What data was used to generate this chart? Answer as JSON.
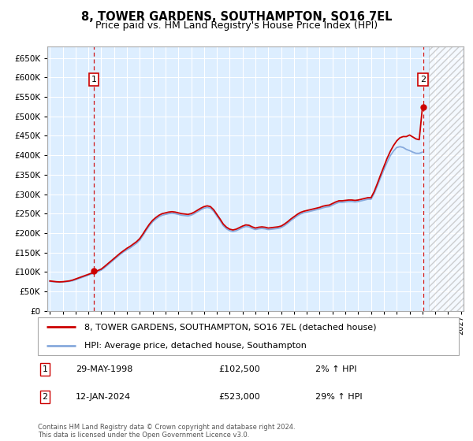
{
  "title": "8, TOWER GARDENS, SOUTHAMPTON, SO16 7EL",
  "subtitle": "Price paid vs. HM Land Registry's House Price Index (HPI)",
  "title_fontsize": 10.5,
  "subtitle_fontsize": 9,
  "ytick_values": [
    0,
    50000,
    100000,
    150000,
    200000,
    250000,
    300000,
    350000,
    400000,
    450000,
    500000,
    550000,
    600000,
    650000
  ],
  "ylim": [
    0,
    680000
  ],
  "xlim_start": 1994.8,
  "xlim_end": 2027.2,
  "chart_bg": "#ddeeff",
  "grid_color": "#ffffff",
  "hpi_color": "#88aadd",
  "price_color": "#cc0000",
  "point1_x": 1998.41,
  "point1_y": 102500,
  "point2_x": 2024.04,
  "point2_y": 523000,
  "hatch_start": 2024.5,
  "legend_label1": "8, TOWER GARDENS, SOUTHAMPTON, SO16 7EL (detached house)",
  "legend_label2": "HPI: Average price, detached house, Southampton",
  "annotation1_num": "1",
  "annotation1_date": "29-MAY-1998",
  "annotation1_price": "£102,500",
  "annotation1_hpi": "2% ↑ HPI",
  "annotation2_num": "2",
  "annotation2_date": "12-JAN-2024",
  "annotation2_price": "£523,000",
  "annotation2_hpi": "29% ↑ HPI",
  "footer": "Contains HM Land Registry data © Crown copyright and database right 2024.\nThis data is licensed under the Open Government Licence v3.0.",
  "hpi_data_x": [
    1995.0,
    1995.25,
    1995.5,
    1995.75,
    1996.0,
    1996.25,
    1996.5,
    1996.75,
    1997.0,
    1997.25,
    1997.5,
    1997.75,
    1998.0,
    1998.25,
    1998.5,
    1998.75,
    1999.0,
    1999.25,
    1999.5,
    1999.75,
    2000.0,
    2000.25,
    2000.5,
    2000.75,
    2001.0,
    2001.25,
    2001.5,
    2001.75,
    2002.0,
    2002.25,
    2002.5,
    2002.75,
    2003.0,
    2003.25,
    2003.5,
    2003.75,
    2004.0,
    2004.25,
    2004.5,
    2004.75,
    2005.0,
    2005.25,
    2005.5,
    2005.75,
    2006.0,
    2006.25,
    2006.5,
    2006.75,
    2007.0,
    2007.25,
    2007.5,
    2007.75,
    2008.0,
    2008.25,
    2008.5,
    2008.75,
    2009.0,
    2009.25,
    2009.5,
    2009.75,
    2010.0,
    2010.25,
    2010.5,
    2010.75,
    2011.0,
    2011.25,
    2011.5,
    2011.75,
    2012.0,
    2012.25,
    2012.5,
    2012.75,
    2013.0,
    2013.25,
    2013.5,
    2013.75,
    2014.0,
    2014.25,
    2014.5,
    2014.75,
    2015.0,
    2015.25,
    2015.5,
    2015.75,
    2016.0,
    2016.25,
    2016.5,
    2016.75,
    2017.0,
    2017.25,
    2017.5,
    2017.75,
    2018.0,
    2018.25,
    2018.5,
    2018.75,
    2019.0,
    2019.25,
    2019.5,
    2019.75,
    2020.0,
    2020.25,
    2020.5,
    2020.75,
    2021.0,
    2021.25,
    2021.5,
    2021.75,
    2022.0,
    2022.25,
    2022.5,
    2022.75,
    2023.0,
    2023.25,
    2023.5,
    2023.75,
    2024.0
  ],
  "hpi_data_y": [
    76000,
    75000,
    74500,
    74000,
    74500,
    75000,
    76000,
    77500,
    80000,
    83000,
    86000,
    89000,
    92000,
    95000,
    98000,
    101000,
    105000,
    111000,
    118000,
    125000,
    132000,
    139000,
    146000,
    152000,
    157000,
    162000,
    168000,
    174000,
    182000,
    194000,
    207000,
    219000,
    229000,
    236000,
    242000,
    246000,
    248000,
    250000,
    251000,
    250000,
    248000,
    246000,
    245000,
    244000,
    246000,
    250000,
    255000,
    260000,
    264000,
    266000,
    264000,
    256000,
    244000,
    232000,
    219000,
    211000,
    206000,
    204000,
    206000,
    210000,
    214000,
    217000,
    216000,
    212000,
    209000,
    211000,
    212000,
    211000,
    209000,
    210000,
    211000,
    212000,
    214000,
    219000,
    225000,
    232000,
    238000,
    244000,
    249000,
    252000,
    254000,
    256000,
    258000,
    260000,
    262000,
    265000,
    267000,
    268000,
    272000,
    276000,
    279000,
    279000,
    280000,
    281000,
    281000,
    280000,
    281000,
    283000,
    285000,
    287000,
    287000,
    302000,
    322000,
    343000,
    363000,
    382000,
    399000,
    411000,
    420000,
    422000,
    420000,
    415000,
    412000,
    408000,
    405000,
    405000,
    408000
  ],
  "price_data_x": [
    1995.0,
    1995.25,
    1995.5,
    1995.75,
    1996.0,
    1996.25,
    1996.5,
    1996.75,
    1997.0,
    1997.25,
    1997.5,
    1997.75,
    1998.0,
    1998.25,
    1998.5,
    1998.75,
    1999.0,
    1999.25,
    1999.5,
    1999.75,
    2000.0,
    2000.25,
    2000.5,
    2000.75,
    2001.0,
    2001.25,
    2001.5,
    2001.75,
    2002.0,
    2002.25,
    2002.5,
    2002.75,
    2003.0,
    2003.25,
    2003.5,
    2003.75,
    2004.0,
    2004.25,
    2004.5,
    2004.75,
    2005.0,
    2005.25,
    2005.5,
    2005.75,
    2006.0,
    2006.25,
    2006.5,
    2006.75,
    2007.0,
    2007.25,
    2007.5,
    2007.75,
    2008.0,
    2008.25,
    2008.5,
    2008.75,
    2009.0,
    2009.25,
    2009.5,
    2009.75,
    2010.0,
    2010.25,
    2010.5,
    2010.75,
    2011.0,
    2011.25,
    2011.5,
    2011.75,
    2012.0,
    2012.25,
    2012.5,
    2012.75,
    2013.0,
    2013.25,
    2013.5,
    2013.75,
    2014.0,
    2014.25,
    2014.5,
    2014.75,
    2015.0,
    2015.25,
    2015.5,
    2015.75,
    2016.0,
    2016.25,
    2016.5,
    2016.75,
    2017.0,
    2017.25,
    2017.5,
    2017.75,
    2018.0,
    2018.25,
    2018.5,
    2018.75,
    2019.0,
    2019.25,
    2019.5,
    2019.75,
    2020.0,
    2020.25,
    2020.5,
    2020.75,
    2021.0,
    2021.25,
    2021.5,
    2021.75,
    2022.0,
    2022.25,
    2022.5,
    2022.75,
    2023.0,
    2023.25,
    2023.5,
    2023.75,
    2024.0
  ],
  "price_data_y": [
    77000,
    76000,
    75000,
    74500,
    75000,
    76000,
    77000,
    79000,
    82000,
    85000,
    88000,
    91000,
    94000,
    97000,
    100500,
    104000,
    107500,
    114000,
    121000,
    128000,
    135000,
    142000,
    149000,
    155000,
    161000,
    166000,
    172000,
    178000,
    186000,
    198000,
    211000,
    223000,
    233000,
    240000,
    246000,
    250000,
    252000,
    254000,
    255000,
    254000,
    252000,
    250000,
    249000,
    248000,
    250000,
    254000,
    259000,
    264000,
    268000,
    270000,
    268000,
    260000,
    248000,
    236000,
    223000,
    215000,
    210000,
    208000,
    210000,
    214000,
    218000,
    221000,
    220000,
    216000,
    213000,
    215000,
    216000,
    215000,
    213000,
    214000,
    215000,
    216000,
    218000,
    223000,
    229000,
    236000,
    242000,
    248000,
    253000,
    256000,
    258000,
    260000,
    262000,
    264000,
    266000,
    269000,
    271000,
    272000,
    276000,
    280000,
    283000,
    283000,
    284000,
    285000,
    285000,
    284000,
    285000,
    287000,
    289000,
    291000,
    291000,
    307000,
    328000,
    350000,
    371000,
    392000,
    410000,
    425000,
    437000,
    445000,
    448000,
    448000,
    452000,
    447000,
    442000,
    440000,
    523000
  ]
}
